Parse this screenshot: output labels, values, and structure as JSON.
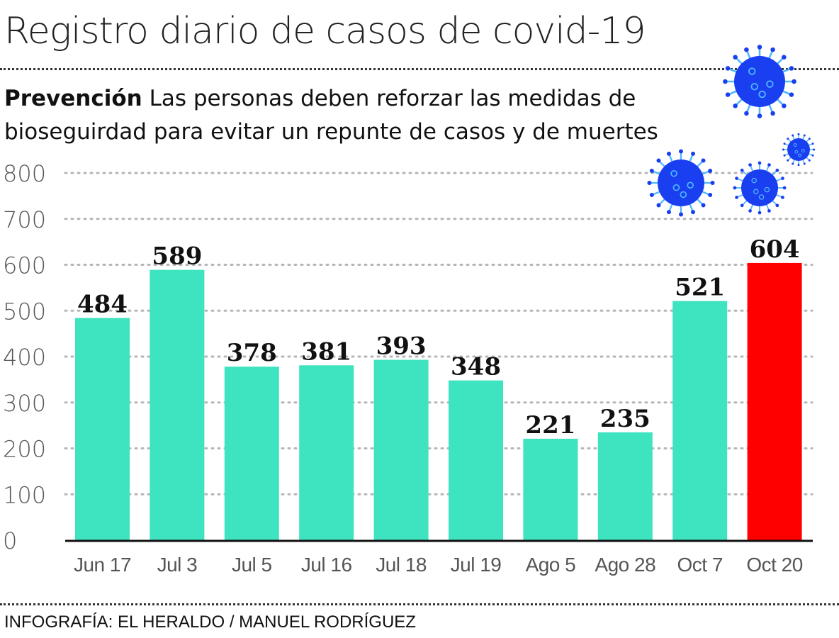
{
  "header": {
    "title": "Registro diario de casos de covid-19",
    "subtitle_bold": "Prevención",
    "subtitle_text": " Las personas deben reforzar las medidas de bioseguirdad para evitar un repunte de casos y de muertes"
  },
  "footer": {
    "credit": "INFOGRAFÍA: EL HERALDO / MANUEL RODRÍGUEZ"
  },
  "colors": {
    "bar": "#3ee3bf",
    "highlight": "#ff0000",
    "virus": "#1a3ff0",
    "virus_light": "#4fb8ff"
  },
  "chart_data": {
    "type": "bar",
    "title": "Registro diario de casos de covid-19",
    "xlabel": "",
    "ylabel": "",
    "categories": [
      "Jun 17",
      "Jul 3",
      "Jul 5",
      "Jul 16",
      "Jul 18",
      "Jul 19",
      "Ago 5",
      "Ago 28",
      "Oct 7",
      "Oct 20"
    ],
    "values": [
      484,
      589,
      378,
      381,
      393,
      348,
      221,
      235,
      521,
      604
    ],
    "highlight_index": 9,
    "ylim": [
      0,
      800
    ],
    "yticks": [
      0,
      100,
      200,
      300,
      400,
      500,
      600,
      700,
      800
    ],
    "grid": true
  }
}
